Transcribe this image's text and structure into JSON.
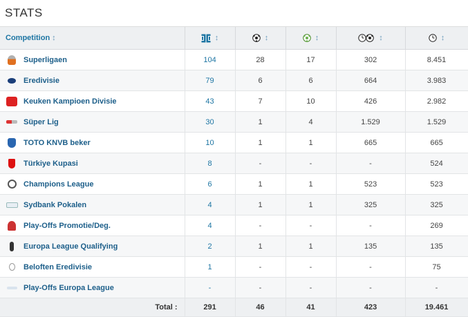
{
  "page": {
    "title": "STATS"
  },
  "table": {
    "headers": {
      "competition": "Competition",
      "sort_arrow": "↕",
      "columns": [
        {
          "icon": "appearances-icon"
        },
        {
          "icon": "goals-icon"
        },
        {
          "icon": "assists-icon"
        },
        {
          "icon": "minutes-per-goal-icon"
        },
        {
          "icon": "minutes-played-icon"
        }
      ]
    },
    "rows": [
      {
        "logo": "superligaen-logo",
        "name": "Superligaen",
        "apps": "104",
        "goals": "28",
        "assists": "17",
        "min_per_goal": "302",
        "minutes": "8.451"
      },
      {
        "logo": "eredivisie-logo",
        "name": "Eredivisie",
        "apps": "79",
        "goals": "6",
        "assists": "6",
        "min_per_goal": "664",
        "minutes": "3.983"
      },
      {
        "logo": "keuken-kampioen-divisie-logo",
        "name": "Keuken Kampioen Divisie",
        "apps": "43",
        "goals": "7",
        "assists": "10",
        "min_per_goal": "426",
        "minutes": "2.982"
      },
      {
        "logo": "super-lig-logo",
        "name": "Süper Lig",
        "apps": "30",
        "goals": "1",
        "assists": "4",
        "min_per_goal": "1.529",
        "minutes": "1.529"
      },
      {
        "logo": "toto-knvb-beker-logo",
        "name": "TOTO KNVB beker",
        "apps": "10",
        "goals": "1",
        "assists": "1",
        "min_per_goal": "665",
        "minutes": "665"
      },
      {
        "logo": "turkiye-kupasi-logo",
        "name": "Türkiye Kupasi",
        "apps": "8",
        "goals": "-",
        "assists": "-",
        "min_per_goal": "-",
        "minutes": "524"
      },
      {
        "logo": "champions-league-logo",
        "name": "Champions League",
        "apps": "6",
        "goals": "1",
        "assists": "1",
        "min_per_goal": "523",
        "minutes": "523"
      },
      {
        "logo": "sydbank-pokalen-logo",
        "name": "Sydbank Pokalen",
        "apps": "4",
        "goals": "1",
        "assists": "1",
        "min_per_goal": "325",
        "minutes": "325"
      },
      {
        "logo": "play-offs-promotie-logo",
        "name": "Play-Offs Promotie/Deg.",
        "apps": "4",
        "goals": "-",
        "assists": "-",
        "min_per_goal": "-",
        "minutes": "269"
      },
      {
        "logo": "europa-league-qualifying-logo",
        "name": "Europa League Qualifying",
        "apps": "2",
        "goals": "1",
        "assists": "1",
        "min_per_goal": "135",
        "minutes": "135"
      },
      {
        "logo": "beloften-eredivisie-logo",
        "name": "Beloften Eredivisie",
        "apps": "1",
        "goals": "-",
        "assists": "-",
        "min_per_goal": "-",
        "minutes": "75"
      },
      {
        "logo": "play-offs-europa-league-logo",
        "name": "Play-Offs Europa League",
        "apps": "-",
        "goals": "-",
        "assists": "-",
        "min_per_goal": "-",
        "minutes": "-"
      }
    ],
    "total": {
      "label": "Total :",
      "apps": "291",
      "goals": "46",
      "assists": "41",
      "min_per_goal": "423",
      "minutes": "19.461"
    }
  }
}
